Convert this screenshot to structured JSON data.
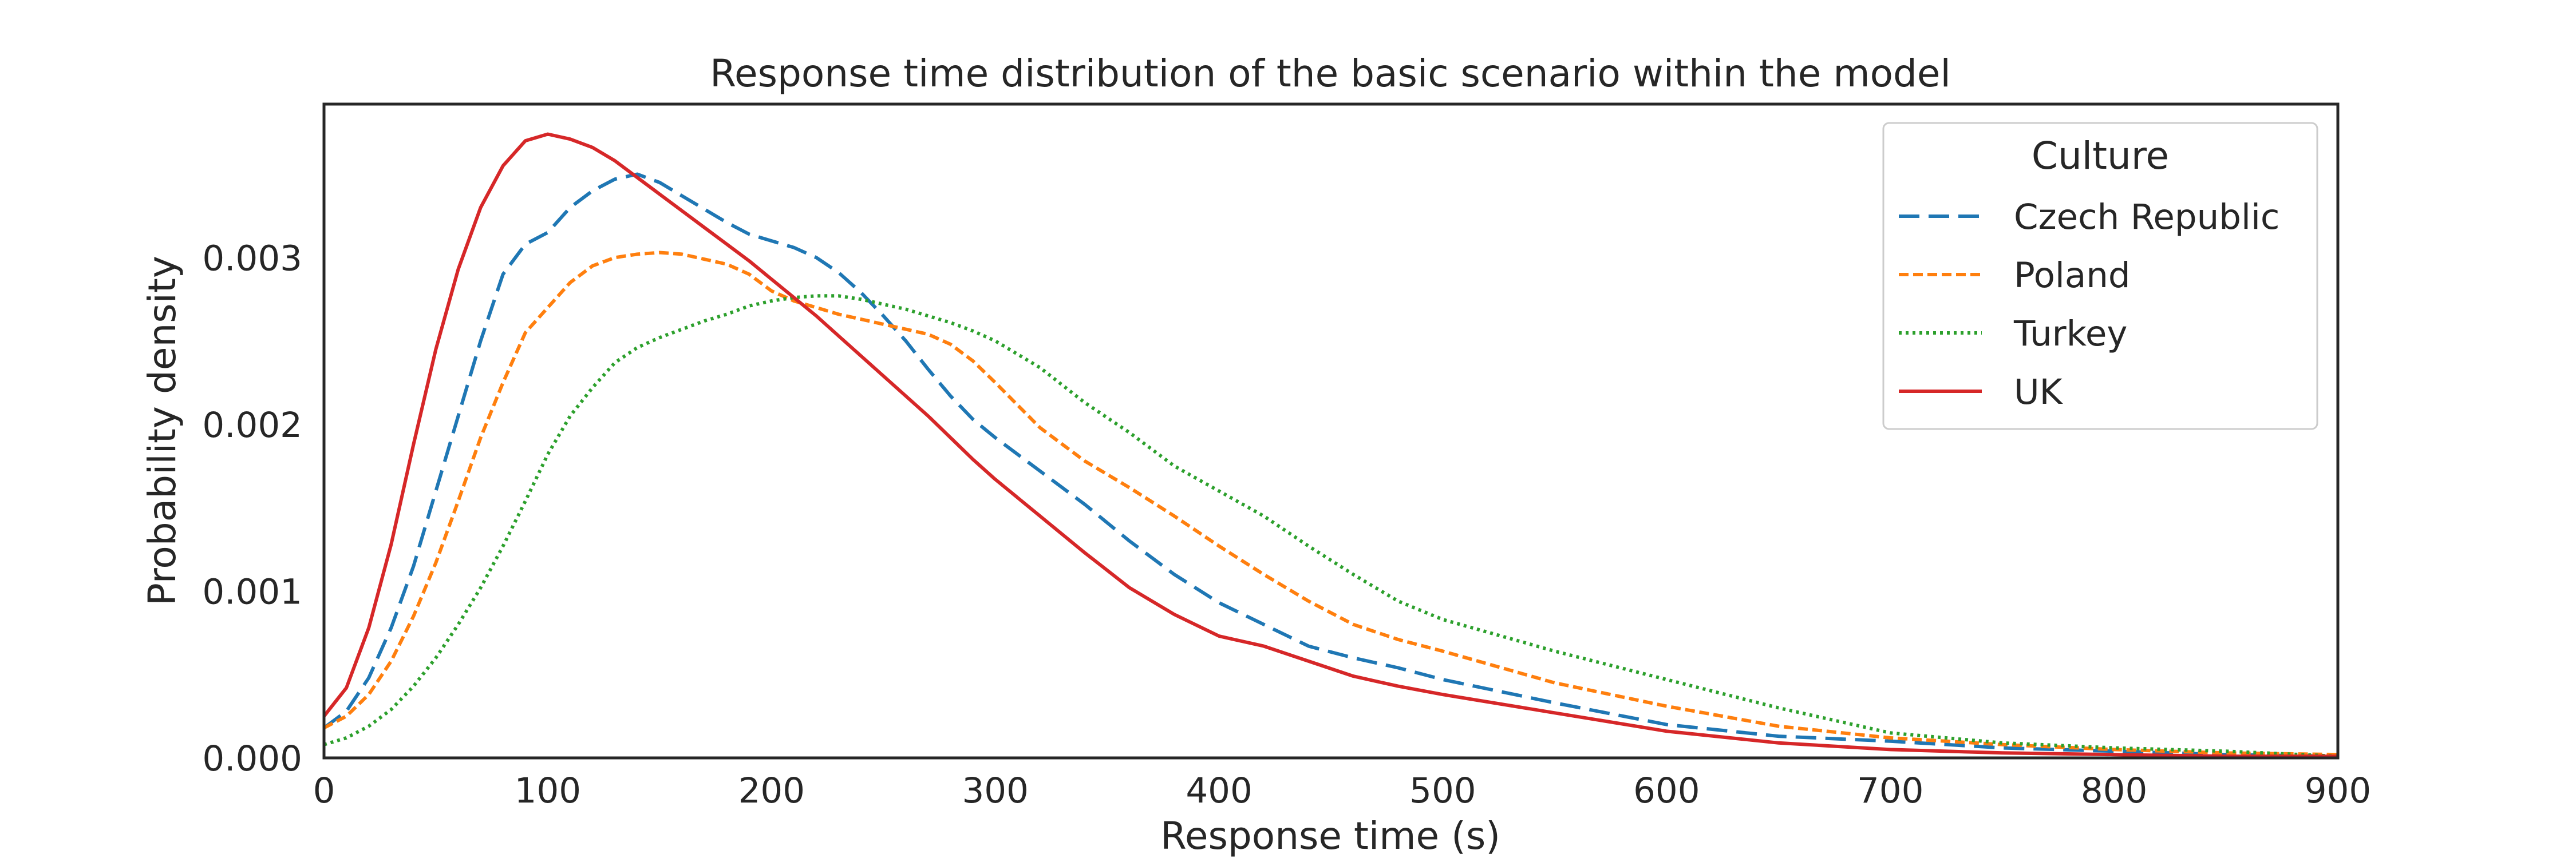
{
  "chart_data": {
    "type": "line",
    "title": "Response time distribution of the basic scenario within the model",
    "xlabel": "Response time (s)",
    "ylabel": "Probability density",
    "xlim": [
      0,
      900
    ],
    "ylim": [
      0,
      0.00392
    ],
    "xticks": [
      0,
      100,
      200,
      300,
      400,
      500,
      600,
      700,
      800,
      900
    ],
    "xtick_labels": [
      "0",
      "100",
      "200",
      "300",
      "400",
      "500",
      "600",
      "700",
      "800",
      "900"
    ],
    "yticks": [
      0,
      0.001,
      0.002,
      0.003
    ],
    "ytick_labels": [
      "0.000",
      "0.001",
      "0.002",
      "0.003"
    ],
    "grid": false,
    "legend": {
      "title": "Culture",
      "placement": "top-right",
      "entries": [
        "Czech Republic",
        "Poland",
        "Turkey",
        "UK"
      ]
    },
    "series": [
      {
        "name": "Czech Republic",
        "color": "#1f77b4",
        "dash": "long-dash",
        "x": [
          0,
          10,
          20,
          30,
          40,
          50,
          60,
          70,
          80,
          90,
          100,
          110,
          120,
          130,
          140,
          150,
          160,
          170,
          180,
          190,
          200,
          210,
          220,
          230,
          240,
          250,
          260,
          270,
          280,
          290,
          300,
          320,
          340,
          360,
          380,
          400,
          420,
          440,
          460,
          480,
          500,
          550,
          600,
          650,
          700,
          750,
          800,
          850,
          900
        ],
        "y": [
          0.00018,
          0.00028,
          0.00048,
          0.00078,
          0.00115,
          0.0016,
          0.00205,
          0.0025,
          0.0029,
          0.00308,
          0.00315,
          0.0033,
          0.0034,
          0.00347,
          0.0035,
          0.00345,
          0.00337,
          0.00329,
          0.00321,
          0.00314,
          0.0031,
          0.00306,
          0.003,
          0.00291,
          0.00279,
          0.00265,
          0.0025,
          0.00233,
          0.00217,
          0.00203,
          0.00192,
          0.00172,
          0.00152,
          0.0013,
          0.0011,
          0.00093,
          0.0008,
          0.00067,
          0.0006,
          0.00054,
          0.00047,
          0.00033,
          0.0002,
          0.00013,
          0.0001,
          6e-05,
          4e-05,
          2e-05,
          1e-05
        ]
      },
      {
        "name": "Poland",
        "color": "#ff7f0e",
        "dash": "short-dash",
        "x": [
          0,
          10,
          20,
          30,
          40,
          50,
          60,
          70,
          80,
          90,
          100,
          110,
          120,
          130,
          140,
          150,
          160,
          170,
          180,
          190,
          200,
          210,
          220,
          230,
          240,
          250,
          260,
          270,
          280,
          290,
          300,
          320,
          340,
          360,
          380,
          400,
          420,
          440,
          460,
          480,
          500,
          550,
          600,
          650,
          700,
          750,
          800,
          850,
          900
        ],
        "y": [
          0.00018,
          0.00025,
          0.00038,
          0.00058,
          0.00085,
          0.00117,
          0.00154,
          0.00192,
          0.00225,
          0.00255,
          0.0027,
          0.00285,
          0.00295,
          0.003,
          0.00302,
          0.00303,
          0.00302,
          0.00299,
          0.00296,
          0.0029,
          0.0028,
          0.00274,
          0.0027,
          0.00266,
          0.00263,
          0.0026,
          0.00257,
          0.00254,
          0.00248,
          0.00238,
          0.00225,
          0.00198,
          0.00178,
          0.00162,
          0.00145,
          0.00127,
          0.0011,
          0.00094,
          0.0008,
          0.00071,
          0.00064,
          0.00045,
          0.00031,
          0.00019,
          0.00012,
          8e-05,
          5e-05,
          3e-05,
          2e-05
        ]
      },
      {
        "name": "Turkey",
        "color": "#2ca02c",
        "dash": "dotted",
        "x": [
          0,
          10,
          20,
          30,
          40,
          50,
          60,
          70,
          80,
          90,
          100,
          110,
          120,
          130,
          140,
          150,
          160,
          170,
          180,
          190,
          200,
          210,
          220,
          230,
          240,
          250,
          260,
          270,
          280,
          290,
          300,
          320,
          340,
          360,
          380,
          400,
          420,
          440,
          460,
          480,
          500,
          550,
          600,
          650,
          700,
          750,
          800,
          850,
          900
        ],
        "y": [
          8e-05,
          0.00012,
          0.00019,
          0.00029,
          0.00043,
          0.0006,
          0.0008,
          0.00102,
          0.00127,
          0.00154,
          0.00182,
          0.00205,
          0.00222,
          0.00237,
          0.00246,
          0.00252,
          0.00257,
          0.00262,
          0.00266,
          0.00271,
          0.00274,
          0.00276,
          0.00277,
          0.00277,
          0.00275,
          0.00272,
          0.00269,
          0.00265,
          0.00261,
          0.00256,
          0.0025,
          0.00234,
          0.00213,
          0.00195,
          0.00175,
          0.0016,
          0.00145,
          0.00127,
          0.0011,
          0.00094,
          0.00083,
          0.00064,
          0.00047,
          0.0003,
          0.00015,
          9e-05,
          6e-05,
          4e-05,
          1e-05
        ]
      },
      {
        "name": "UK",
        "color": "#d62728",
        "dash": "solid",
        "x": [
          0,
          10,
          20,
          30,
          40,
          50,
          60,
          70,
          80,
          90,
          100,
          110,
          120,
          130,
          140,
          150,
          160,
          170,
          180,
          190,
          200,
          210,
          220,
          230,
          240,
          250,
          260,
          270,
          280,
          290,
          300,
          320,
          340,
          360,
          380,
          400,
          420,
          440,
          460,
          480,
          500,
          550,
          600,
          650,
          700,
          750,
          800,
          850,
          900
        ],
        "y": [
          0.00025,
          0.00042,
          0.00078,
          0.00128,
          0.00188,
          0.00245,
          0.00293,
          0.0033,
          0.00355,
          0.0037,
          0.00374,
          0.00371,
          0.00366,
          0.00358,
          0.00348,
          0.00338,
          0.00328,
          0.00318,
          0.00308,
          0.00298,
          0.00287,
          0.00276,
          0.00265,
          0.00253,
          0.00241,
          0.00229,
          0.00217,
          0.00205,
          0.00192,
          0.00179,
          0.00167,
          0.00145,
          0.00123,
          0.00102,
          0.00086,
          0.00073,
          0.00067,
          0.00058,
          0.00049,
          0.00043,
          0.00038,
          0.00027,
          0.00016,
          9e-05,
          5e-05,
          3e-05,
          2e-05,
          1e-05,
          1e-05
        ]
      }
    ]
  }
}
